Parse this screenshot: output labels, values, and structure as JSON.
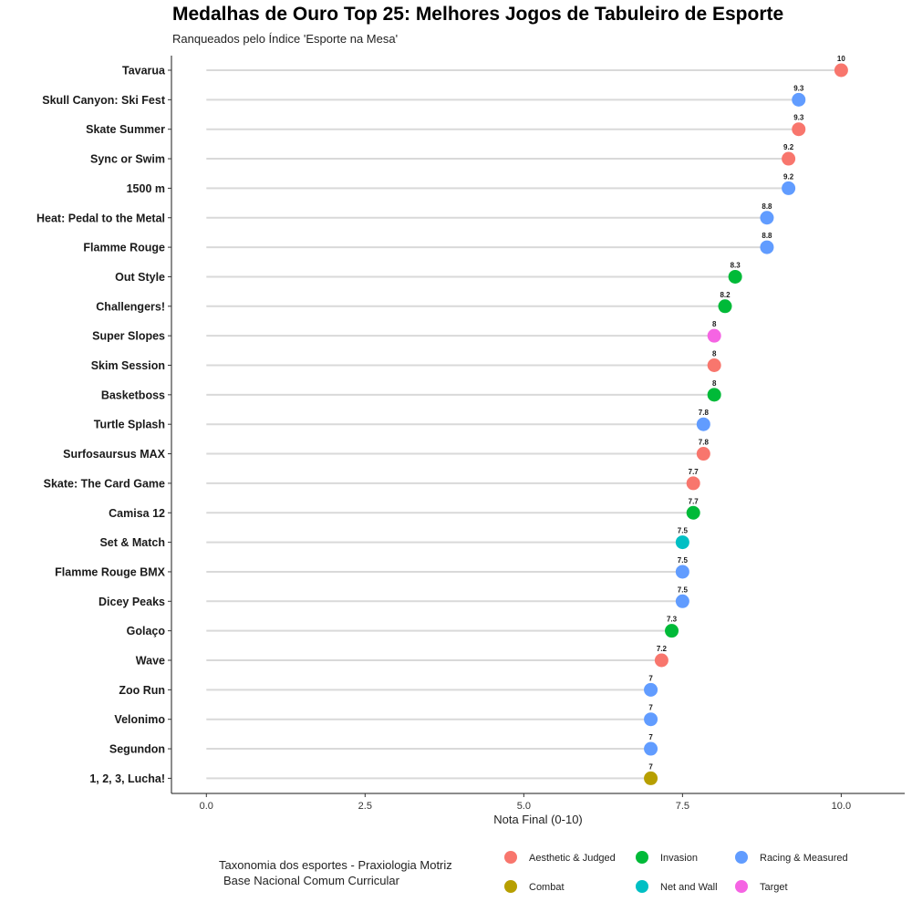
{
  "chart_data": {
    "type": "lollipop",
    "title": "Medalhas de Ouro Top 25: Melhores Jogos de Tabuleiro de Esporte",
    "subtitle": "Ranqueados pelo Índice 'Esporte na Mesa'",
    "xlabel": "Nota Final (0-10)",
    "xlim": [
      -0.55,
      11.0
    ],
    "xticks": [
      0.0,
      2.5,
      5.0,
      7.5,
      10.0
    ],
    "xtick_labels": [
      "0.0",
      "2.5",
      "5.0",
      "7.5",
      "10.0"
    ],
    "categories": [
      "Tavarua",
      "Skull Canyon: Ski Fest",
      "Skate Summer",
      "Sync or Swim",
      "1500 m",
      "Heat: Pedal to the Metal",
      "Flamme Rouge",
      "Out Style",
      "Challengers!",
      "Super Slopes",
      "Skim Session",
      "Basketboss",
      "Turtle Splash",
      "Surfosaursus MAX",
      "Skate: The Card Game",
      "Camisa 12",
      "Set & Match",
      "Flamme Rouge BMX",
      "Dicey Peaks",
      "Golaço",
      "Wave",
      "Zoo Run",
      "Velonimo",
      "Segundon",
      "1, 2, 3, Lucha!"
    ],
    "values": [
      10.0,
      9.33,
      9.33,
      9.17,
      9.17,
      8.83,
      8.83,
      8.33,
      8.17,
      8.0,
      8.0,
      8.0,
      7.83,
      7.83,
      7.67,
      7.67,
      7.5,
      7.5,
      7.5,
      7.33,
      7.17,
      7.0,
      7.0,
      7.0,
      7.0
    ],
    "value_labels": [
      "10",
      "9.3",
      "9.3",
      "9.2",
      "9.2",
      "8.8",
      "8.8",
      "8.3",
      "8.2",
      "8",
      "8",
      "8",
      "7.8",
      "7.8",
      "7.7",
      "7.7",
      "7.5",
      "7.5",
      "7.5",
      "7.3",
      "7.2",
      "7",
      "7",
      "7",
      "7"
    ],
    "groups": [
      "Aesthetic & Judged",
      "Racing & Measured",
      "Aesthetic & Judged",
      "Aesthetic & Judged",
      "Racing & Measured",
      "Racing & Measured",
      "Racing & Measured",
      "Invasion",
      "Invasion",
      "Target",
      "Aesthetic & Judged",
      "Invasion",
      "Racing & Measured",
      "Aesthetic & Judged",
      "Aesthetic & Judged",
      "Invasion",
      "Net and Wall",
      "Racing & Measured",
      "Racing & Measured",
      "Invasion",
      "Aesthetic & Judged",
      "Racing & Measured",
      "Racing & Measured",
      "Racing & Measured",
      "Combat"
    ],
    "legend": {
      "title_lines": [
        "Taxonomia dos esportes - Praxiologia Motriz",
        "Base Nacional Comum Curricular"
      ],
      "position": "bottom",
      "items": [
        {
          "label": "Aesthetic & Judged",
          "color": "#F8766D"
        },
        {
          "label": "Invasion",
          "color": "#00BA38"
        },
        {
          "label": "Racing & Measured",
          "color": "#619CFF"
        },
        {
          "label": "Combat",
          "color": "#B79F00"
        },
        {
          "label": "Net and Wall",
          "color": "#00BFC4"
        },
        {
          "label": "Target",
          "color": "#F564E3"
        }
      ]
    }
  }
}
